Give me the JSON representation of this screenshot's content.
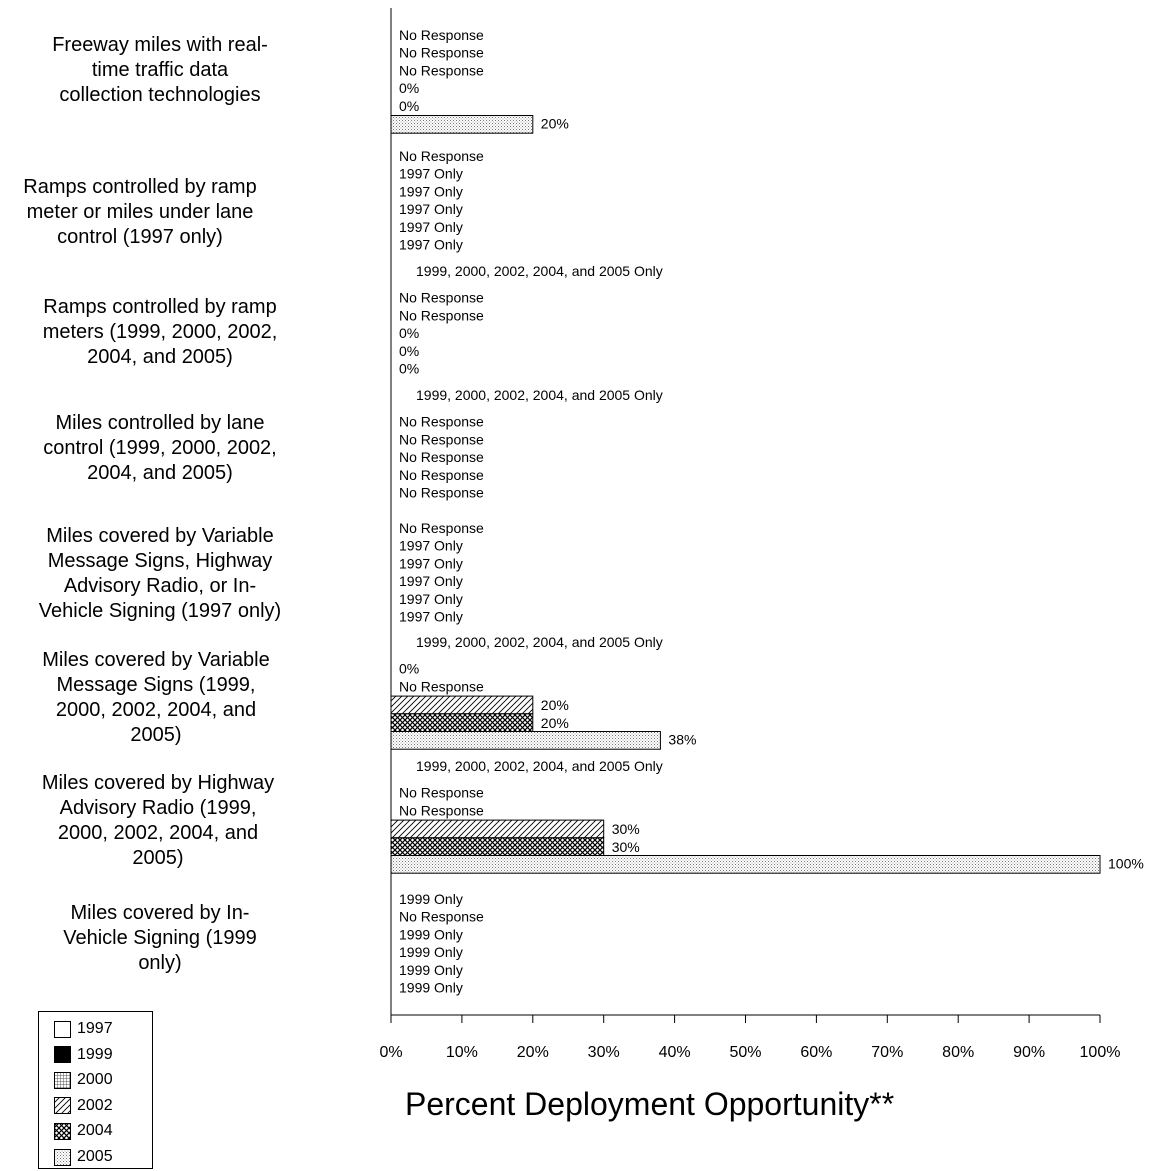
{
  "chart_data": {
    "type": "bar",
    "orientation": "horizontal",
    "xlabel": "Percent Deployment Opportunity**",
    "xlim": [
      0,
      100
    ],
    "xticks": [
      "0%",
      "10%",
      "20%",
      "30%",
      "40%",
      "50%",
      "60%",
      "70%",
      "80%",
      "90%",
      "100%"
    ],
    "series_names": [
      "1997",
      "1999",
      "2000",
      "2002",
      "2004",
      "2005"
    ],
    "categories": [
      {
        "label": "Freeway miles with real-time traffic data collection technologies",
        "label_lines": [
          "Freeway miles with real-",
          "time traffic data",
          "collection technologies"
        ],
        "entries": [
          {
            "series": "1997",
            "value": null,
            "label": "No Response"
          },
          {
            "series": "1999",
            "value": null,
            "label": "No Response"
          },
          {
            "series": "2000",
            "value": null,
            "label": "No Response"
          },
          {
            "series": "2002",
            "value": 0,
            "label": "0%"
          },
          {
            "series": "2004",
            "value": 0,
            "label": "0%"
          },
          {
            "series": "2005",
            "value": 20,
            "label": "20%"
          }
        ]
      },
      {
        "label": "Ramps controlled by ramp meter or miles under lane control (1997 only)",
        "label_lines": [
          "Ramps controlled by ramp",
          "meter or miles under lane",
          "control (1997 only)"
        ],
        "entries": [
          {
            "series": "1997",
            "value": null,
            "label": "No Response"
          },
          {
            "series": "1999",
            "value": null,
            "label": "1997 Only"
          },
          {
            "series": "2000",
            "value": null,
            "label": "1997 Only"
          },
          {
            "series": "2002",
            "value": null,
            "label": "1997 Only"
          },
          {
            "series": "2004",
            "value": null,
            "label": "1997 Only"
          },
          {
            "series": "2005",
            "value": null,
            "label": "1997 Only"
          }
        ]
      },
      {
        "label": "Ramps controlled by ramp meters (1999, 2000, 2002, 2004, and 2005)",
        "label_lines": [
          "Ramps controlled by ramp",
          "meters (1999, 2000, 2002,",
          "2004, and 2005)"
        ],
        "entries": [
          {
            "series": "1997",
            "value": null,
            "label": "1999, 2000, 2002, 2004, and 2005 Only"
          },
          {
            "series": "1999",
            "value": null,
            "label": "No Response"
          },
          {
            "series": "2000",
            "value": null,
            "label": "No Response"
          },
          {
            "series": "2002",
            "value": 0,
            "label": "0%"
          },
          {
            "series": "2004",
            "value": 0,
            "label": "0%"
          },
          {
            "series": "2005",
            "value": 0,
            "label": "0%"
          }
        ]
      },
      {
        "label": "Miles controlled by lane control (1999, 2000, 2002, 2004, and 2005)",
        "label_lines": [
          "Miles controlled by lane",
          "control (1999, 2000, 2002,",
          "2004, and 2005)"
        ],
        "entries": [
          {
            "series": "1997",
            "value": null,
            "label": "1999, 2000, 2002, 2004, and 2005 Only"
          },
          {
            "series": "1999",
            "value": null,
            "label": "No Response"
          },
          {
            "series": "2000",
            "value": null,
            "label": "No Response"
          },
          {
            "series": "2002",
            "value": null,
            "label": "No Response"
          },
          {
            "series": "2004",
            "value": null,
            "label": "No Response"
          },
          {
            "series": "2005",
            "value": null,
            "label": "No Response"
          }
        ]
      },
      {
        "label": "Miles covered by Variable Message Signs, Highway Advisory Radio, or In-Vehicle Signing (1997 only)",
        "label_lines": [
          "Miles covered by Variable",
          "Message Signs, Highway",
          "Advisory Radio, or In-",
          "Vehicle Signing (1997 only)"
        ],
        "entries": [
          {
            "series": "1997",
            "value": null,
            "label": "No Response"
          },
          {
            "series": "1999",
            "value": null,
            "label": "1997 Only"
          },
          {
            "series": "2000",
            "value": null,
            "label": "1997 Only"
          },
          {
            "series": "2002",
            "value": null,
            "label": "1997 Only"
          },
          {
            "series": "2004",
            "value": null,
            "label": "1997 Only"
          },
          {
            "series": "2005",
            "value": null,
            "label": "1997 Only"
          }
        ]
      },
      {
        "label": "Miles covered by Variable Message Signs (1999, 2000, 2002, 2004, and 2005)",
        "label_lines": [
          "Miles covered by Variable",
          "Message Signs (1999,",
          "2000, 2002, 2004, and",
          "2005)"
        ],
        "entries": [
          {
            "series": "1997",
            "value": null,
            "label": "1999, 2000, 2002, 2004, and 2005 Only"
          },
          {
            "series": "1999",
            "value": 0,
            "label": "0%"
          },
          {
            "series": "2000",
            "value": null,
            "label": "No Response"
          },
          {
            "series": "2002",
            "value": 20,
            "label": "20%"
          },
          {
            "series": "2004",
            "value": 20,
            "label": "20%"
          },
          {
            "series": "2005",
            "value": 38,
            "label": "38%"
          }
        ]
      },
      {
        "label": "Miles covered by Highway Advisory Radio (1999, 2000, 2002, 2004, and 2005)",
        "label_lines": [
          "Miles covered by Highway",
          "Advisory Radio (1999,",
          "2000,  2002, 2004, and",
          "2005)"
        ],
        "entries": [
          {
            "series": "1997",
            "value": null,
            "label": "1999, 2000, 2002, 2004, and 2005 Only"
          },
          {
            "series": "1999",
            "value": null,
            "label": "No Response"
          },
          {
            "series": "2000",
            "value": null,
            "label": "No Response"
          },
          {
            "series": "2002",
            "value": 30,
            "label": "30%"
          },
          {
            "series": "2004",
            "value": 30,
            "label": "30%"
          },
          {
            "series": "2005",
            "value": 100,
            "label": "100%"
          }
        ]
      },
      {
        "label": "Miles covered by In-Vehicle Signing (1999 only)",
        "label_lines": [
          "Miles covered by In-",
          "Vehicle Signing (1999",
          "only)"
        ],
        "entries": [
          {
            "series": "1997",
            "value": null,
            "label": "1999 Only"
          },
          {
            "series": "1999",
            "value": null,
            "label": "No Response"
          },
          {
            "series": "2000",
            "value": null,
            "label": "1999 Only"
          },
          {
            "series": "2002",
            "value": null,
            "label": "1999 Only"
          },
          {
            "series": "2004",
            "value": null,
            "label": "1999 Only"
          },
          {
            "series": "2005",
            "value": null,
            "label": "1999 Only"
          }
        ]
      }
    ],
    "legend": {
      "placement": "bottom-left",
      "entries": [
        {
          "name": "1997",
          "pattern": "white"
        },
        {
          "name": "1999",
          "pattern": "black"
        },
        {
          "name": "2000",
          "pattern": "grid"
        },
        {
          "name": "2002",
          "pattern": "diagonal"
        },
        {
          "name": "2004",
          "pattern": "crosshatch"
        },
        {
          "name": "2005",
          "pattern": "dots"
        }
      ]
    },
    "grid": false
  }
}
